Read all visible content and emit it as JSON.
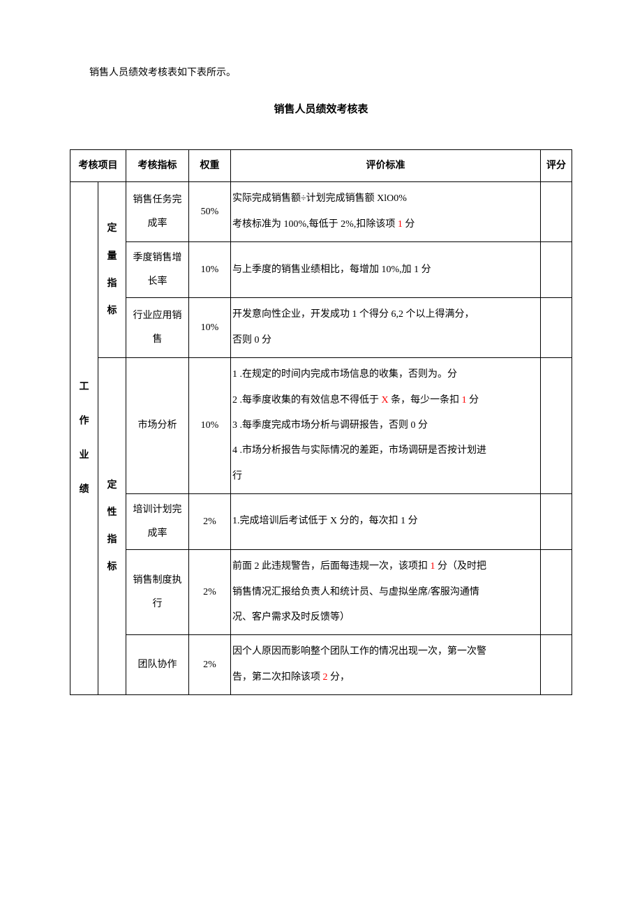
{
  "intro": "销售人员绩效考核表如下表所示。",
  "title": "销售人员绩效考核表",
  "headers": {
    "project": "考核项目",
    "metric": "考核指标",
    "weight": "权重",
    "criteria": "评价标准",
    "score": "评分"
  },
  "category": {
    "work_perf_chars": [
      "工",
      "作",
      "业",
      "绩"
    ],
    "quant_chars": [
      "定",
      "量",
      "指",
      "标"
    ],
    "qual_chars": [
      "定",
      "性",
      "指",
      "标"
    ]
  },
  "rows": [
    {
      "metric": "销售任务完成率",
      "weight": "50%",
      "criteria_parts": [
        {
          "t": "实际完成销售额÷计划完成销售额 XlO0%"
        },
        {
          "br": true
        },
        {
          "t": "考核标准为 100%,每低于 2%,扣除该项 "
        },
        {
          "t": "1",
          "red": true
        },
        {
          "t": " 分"
        }
      ]
    },
    {
      "metric": "季度销售增长率",
      "weight": "10%",
      "criteria_parts": [
        {
          "t": "与上季度的销售业绩相比，每增加 10%,加 1 分"
        }
      ]
    },
    {
      "metric": "行业应用销售",
      "weight": "10%",
      "criteria_parts": [
        {
          "t": "开发意向性企业，开发成功 1 个得分 6,2 个以上得满分，"
        },
        {
          "br": true
        },
        {
          "t": "否则 0 分"
        }
      ]
    },
    {
      "metric": "市场分析",
      "weight": "10%",
      "criteria_parts": [
        {
          "t": "1 .在规定的时间内完成市场信息的收集，否则为。分"
        },
        {
          "br": true
        },
        {
          "t": "2 .每季度收集的有效信息不得低于 "
        },
        {
          "t": "X",
          "red": true
        },
        {
          "t": " 条，每少一条扣 "
        },
        {
          "t": "1",
          "red": true
        },
        {
          "t": " 分"
        },
        {
          "br": true
        },
        {
          "t": "3 .每季度完成市场分析与调研报告，否则 0 分"
        },
        {
          "br": true
        },
        {
          "t": "4 .市场分析报告与实际情况的差距，市场调研是否按计划进"
        },
        {
          "br": true
        },
        {
          "t": "行"
        }
      ]
    },
    {
      "metric": "培训计划完成率",
      "weight": "2%",
      "criteria_parts": [
        {
          "t": "1.完成培训后考试低于 X 分的，每次扣 1 分"
        }
      ]
    },
    {
      "metric": "销售制度执行",
      "weight": "2%",
      "criteria_parts": [
        {
          "t": "前面 2 此违规警告，后面每违规一次，该项扣 "
        },
        {
          "t": "1",
          "red": true
        },
        {
          "t": " 分（及时把"
        },
        {
          "br": true
        },
        {
          "t": "销售情况汇报给负责人和统计员、与虚拟坐席/客服沟通情"
        },
        {
          "br": true
        },
        {
          "t": "况、客户需求及时反馈等）"
        }
      ]
    },
    {
      "metric": "团队协作",
      "weight": "2%",
      "criteria_parts": [
        {
          "t": "因个人原因而影响整个团队工作的情况出现一次，第一次警"
        },
        {
          "br": true
        },
        {
          "t": "告，第二次扣除该项 "
        },
        {
          "t": "2",
          "red": true
        },
        {
          "t": " 分，"
        }
      ]
    }
  ]
}
